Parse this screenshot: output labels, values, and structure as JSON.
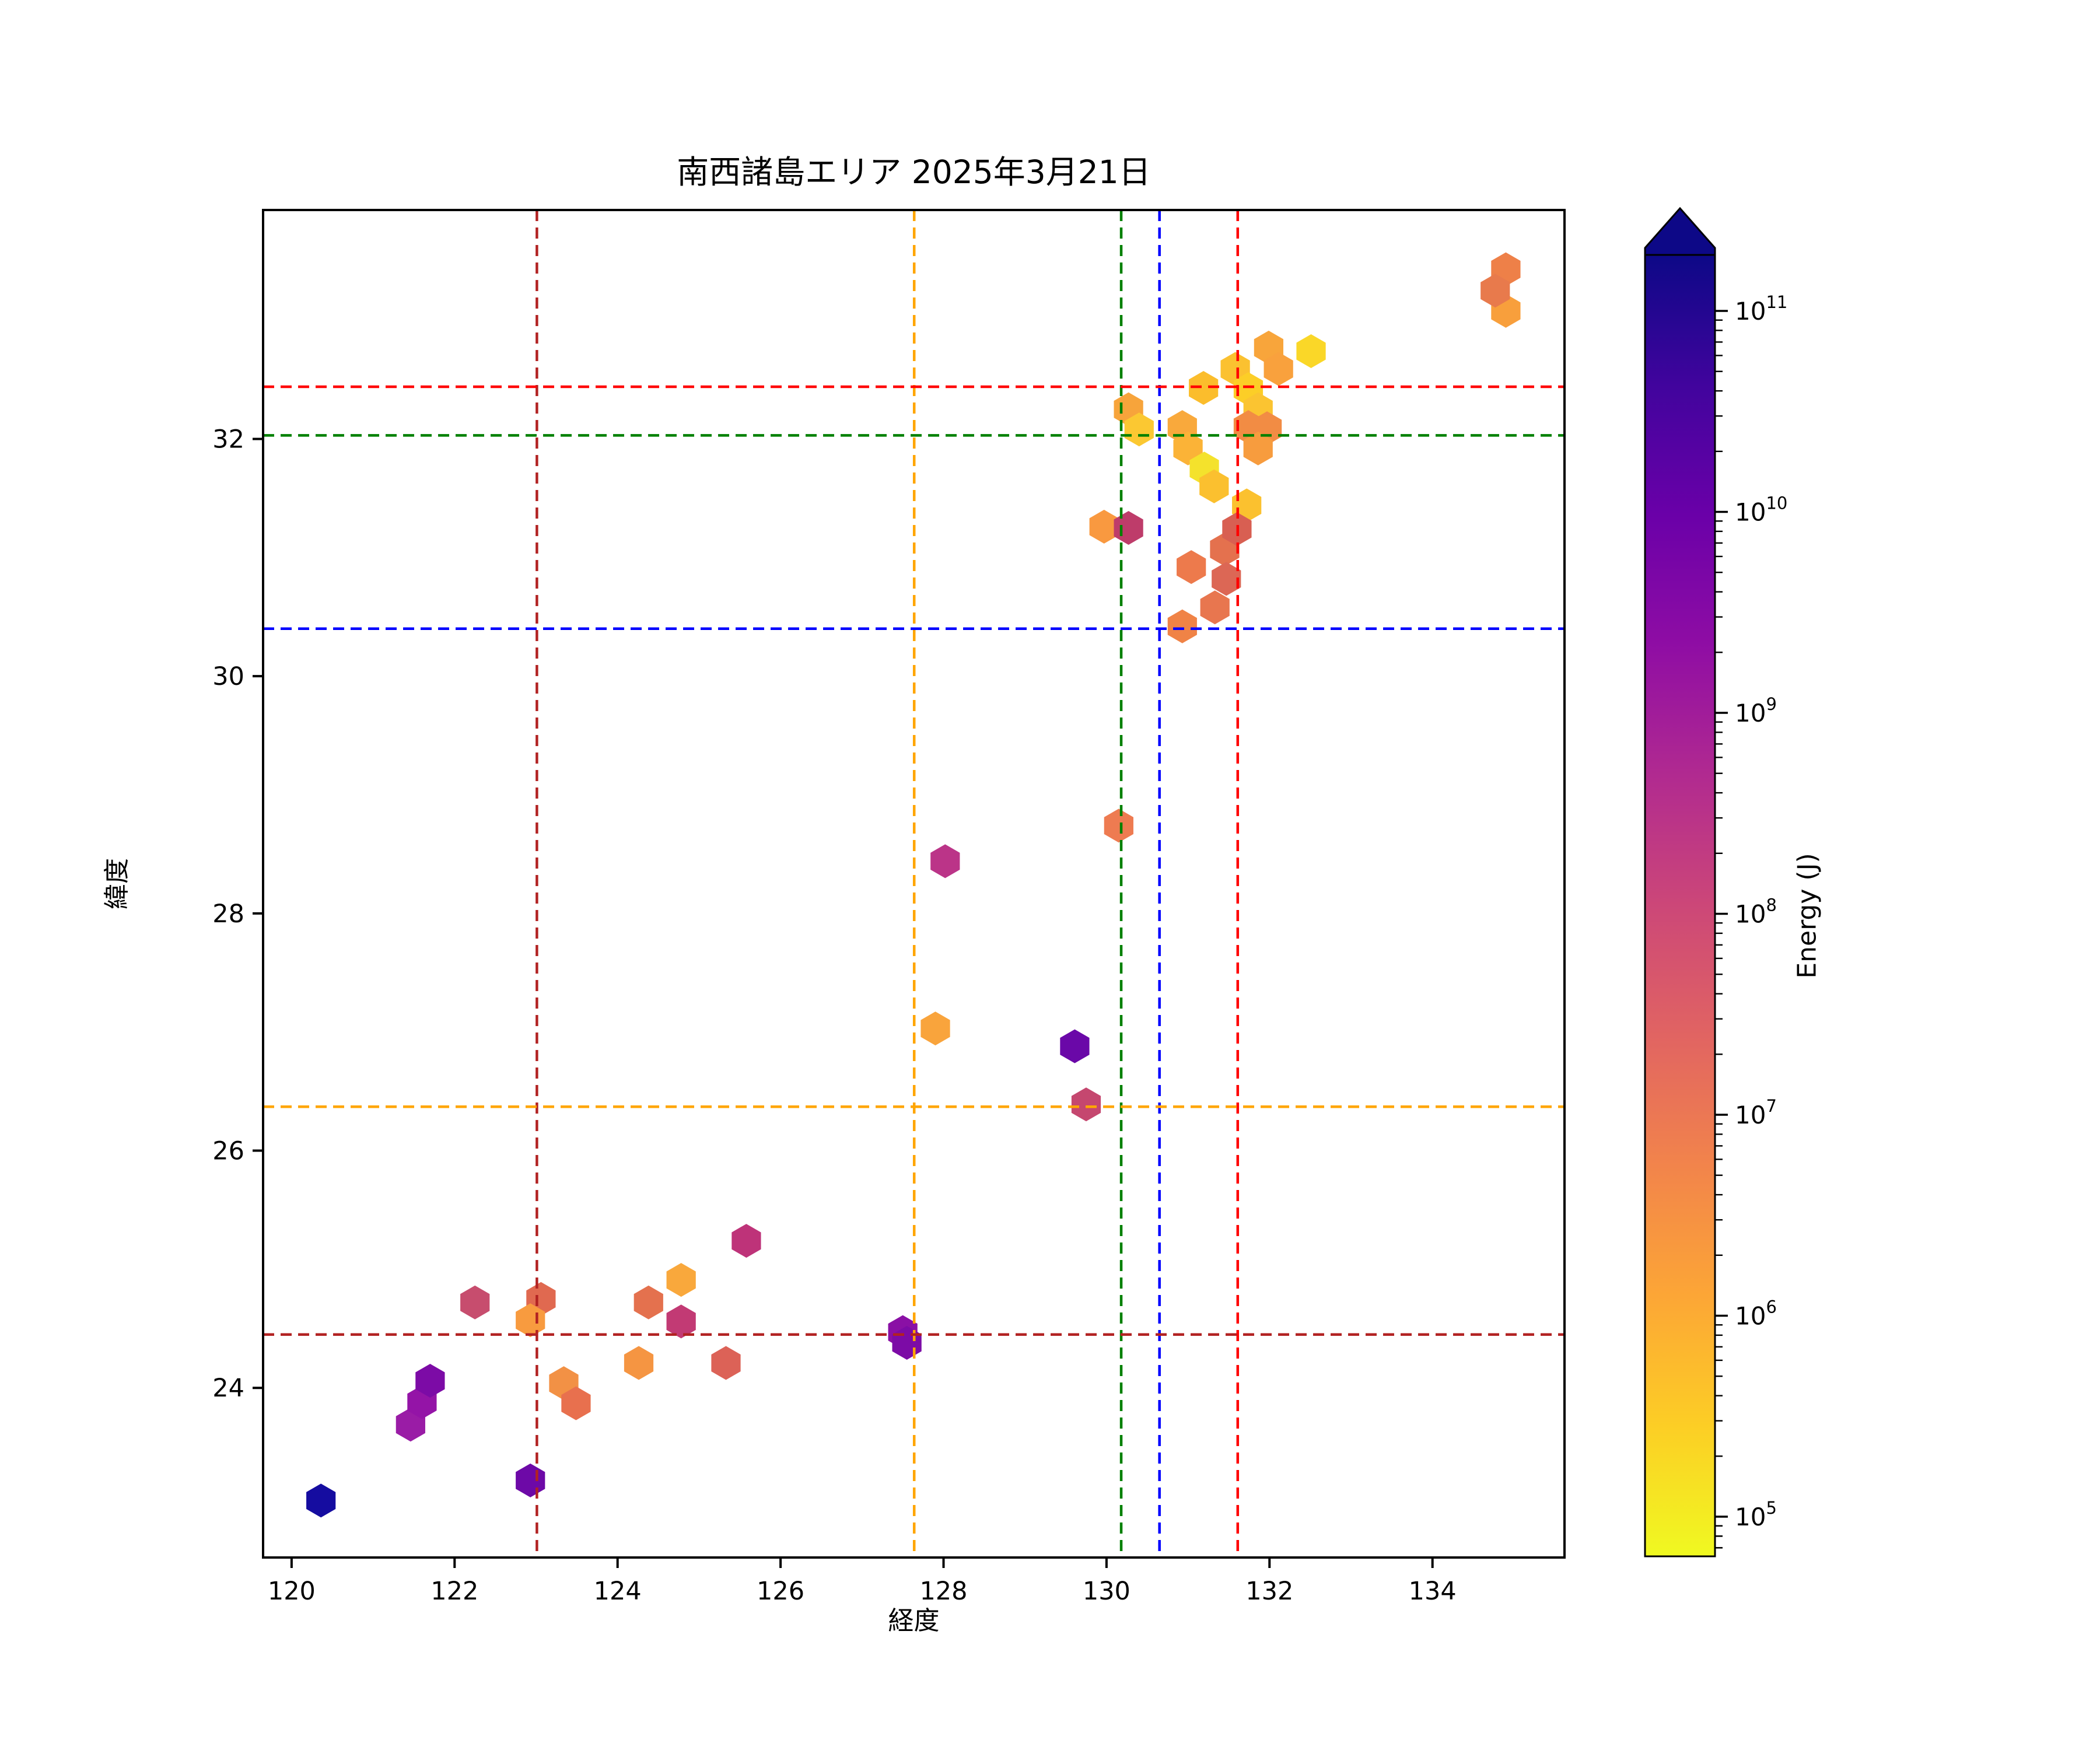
{
  "title": "南西諸島エリア 2025年3月21日",
  "axes": {
    "xlabel": "経度",
    "ylabel": "緯度",
    "xticks": [
      120,
      122,
      124,
      126,
      128,
      130,
      132,
      134
    ],
    "yticks": [
      24,
      26,
      28,
      30,
      32
    ],
    "xlim": [
      119.65,
      135.62
    ],
    "ylim": [
      22.57,
      33.93
    ]
  },
  "colorbar": {
    "label": "Energy (J)",
    "scale": "log",
    "extend": "max",
    "colormap": "plasma_r",
    "tick_exponents": [
      11,
      10,
      9,
      8,
      7,
      6,
      5
    ],
    "tick_values": [
      100000000000.0,
      10000000000.0,
      1000000000.0,
      100000000.0,
      10000000.0,
      1000000.0,
      100000.0
    ],
    "gradient_top_to_bottom": [
      "#0D0887",
      "#41049D",
      "#6A00A8",
      "#8F0DA4",
      "#B12A90",
      "#CC4778",
      "#E16462",
      "#F2844B",
      "#FCA636",
      "#FCCE25",
      "#F0F921"
    ],
    "arrow_color": "#0D0887"
  },
  "chart_data": {
    "type": "scatter",
    "marker": "hexagon",
    "title": "南西諸島エリア 2025年3月21日",
    "xlabel": "経度",
    "ylabel": "緯度",
    "xlim": [
      119.65,
      135.62
    ],
    "ylim": [
      22.57,
      33.93
    ],
    "grid": false,
    "color_scale_label": "Energy (J)",
    "reference_lines": [
      {
        "orientation": "vertical",
        "value": 123.01,
        "color": "#B22222",
        "style": "dashed"
      },
      {
        "orientation": "vertical",
        "value": 127.64,
        "color": "#FFA500",
        "style": "dashed"
      },
      {
        "orientation": "vertical",
        "value": 130.18,
        "color": "#008000",
        "style": "dashed"
      },
      {
        "orientation": "vertical",
        "value": 130.65,
        "color": "#0000FF",
        "style": "dashed"
      },
      {
        "orientation": "vertical",
        "value": 131.61,
        "color": "#FF0000",
        "style": "dashed"
      },
      {
        "orientation": "horizontal",
        "value": 24.45,
        "color": "#B22222",
        "style": "dashed"
      },
      {
        "orientation": "horizontal",
        "value": 26.37,
        "color": "#FFA500",
        "style": "dashed"
      },
      {
        "orientation": "horizontal",
        "value": 30.4,
        "color": "#0000FF",
        "style": "dashed"
      },
      {
        "orientation": "horizontal",
        "value": 32.03,
        "color": "#008000",
        "style": "dashed"
      },
      {
        "orientation": "horizontal",
        "value": 32.44,
        "color": "#FF0000",
        "style": "dashed"
      }
    ],
    "points": [
      {
        "lon": 120.36,
        "lat": 23.05,
        "energy_j": 150000000000.0,
        "color": "#150CA0"
      },
      {
        "lon": 121.46,
        "lat": 23.69,
        "energy_j": 5000000000.0,
        "color": "#9A1CA6"
      },
      {
        "lon": 121.6,
        "lat": 23.88,
        "energy_j": 6000000000.0,
        "color": "#9414A7"
      },
      {
        "lon": 121.7,
        "lat": 24.06,
        "energy_j": 10000000000.0,
        "color": "#7C0BA6"
      },
      {
        "lon": 122.25,
        "lat": 24.72,
        "energy_j": 300000000.0,
        "color": "#C74D6E"
      },
      {
        "lon": 123.06,
        "lat": 24.75,
        "energy_j": 80000000.0,
        "color": "#E06950"
      },
      {
        "lon": 122.93,
        "lat": 24.57,
        "energy_j": 3000000.0,
        "color": "#F89B3F"
      },
      {
        "lon": 122.93,
        "lat": 23.22,
        "energy_j": 20000000000.0,
        "color": "#6D09A7"
      },
      {
        "lon": 123.34,
        "lat": 24.04,
        "energy_j": 5000000.0,
        "color": "#F29145"
      },
      {
        "lon": 123.49,
        "lat": 23.87,
        "energy_j": 45000000.0,
        "color": "#E8704E"
      },
      {
        "lon": 124.26,
        "lat": 24.21,
        "energy_j": 4000000.0,
        "color": "#F59542"
      },
      {
        "lon": 124.38,
        "lat": 24.72,
        "energy_j": 50000000.0,
        "color": "#E4714E"
      },
      {
        "lon": 124.78,
        "lat": 24.56,
        "energy_j": 600000000.0,
        "color": "#C23A74"
      },
      {
        "lon": 124.78,
        "lat": 24.91,
        "energy_j": 1800000.0,
        "color": "#F9A83C"
      },
      {
        "lon": 125.33,
        "lat": 24.21,
        "energy_j": 120000000.0,
        "color": "#DC6257"
      },
      {
        "lon": 125.58,
        "lat": 25.24,
        "energy_j": 900000000.0,
        "color": "#BE3379"
      },
      {
        "lon": 127.5,
        "lat": 24.47,
        "energy_j": 8000000000.0,
        "color": "#8A10A5"
      },
      {
        "lon": 127.55,
        "lat": 24.38,
        "energy_j": 10000000000.0,
        "color": "#7C0BA6"
      },
      {
        "lon": 128.02,
        "lat": 28.44,
        "energy_j": 1000000000.0,
        "color": "#BB3488"
      },
      {
        "lon": 127.9,
        "lat": 27.03,
        "energy_j": 2000000.0,
        "color": "#F9A43C"
      },
      {
        "lon": 129.61,
        "lat": 26.88,
        "energy_j": 25000000000.0,
        "color": "#6A08A8"
      },
      {
        "lon": 129.75,
        "lat": 26.39,
        "energy_j": 400000000.0,
        "color": "#C5476F"
      },
      {
        "lon": 130.15,
        "lat": 28.74,
        "energy_j": 14000000.0,
        "color": "#EE7B51"
      },
      {
        "lon": 129.97,
        "lat": 31.26,
        "energy_j": 3000000.0,
        "color": "#F99940"
      },
      {
        "lon": 130.27,
        "lat": 31.25,
        "energy_j": 500000000.0,
        "color": "#BE3C6A"
      },
      {
        "lon": 130.27,
        "lat": 32.25,
        "energy_j": 2000000.0,
        "color": "#F7A43B"
      },
      {
        "lon": 130.4,
        "lat": 32.08,
        "energy_j": 600000.0,
        "color": "#FBC832"
      },
      {
        "lon": 130.93,
        "lat": 32.1,
        "energy_j": 1800000.0,
        "color": "#F9A93C"
      },
      {
        "lon": 131.0,
        "lat": 31.92,
        "energy_j": 1400000.0,
        "color": "#FBB337"
      },
      {
        "lon": 131.19,
        "lat": 32.43,
        "energy_j": 1000000.0,
        "color": "#FBBD2C"
      },
      {
        "lon": 131.2,
        "lat": 31.75,
        "energy_j": 120000.0,
        "color": "#F4E22C"
      },
      {
        "lon": 131.32,
        "lat": 31.6,
        "energy_j": 900000.0,
        "color": "#FBC02F"
      },
      {
        "lon": 131.58,
        "lat": 32.59,
        "energy_j": 800000.0,
        "color": "#FBC130"
      },
      {
        "lon": 131.74,
        "lat": 32.42,
        "energy_j": 400000.0,
        "color": "#FCCE27"
      },
      {
        "lon": 131.86,
        "lat": 32.25,
        "energy_j": 700000.0,
        "color": "#FBC431"
      },
      {
        "lon": 131.99,
        "lat": 32.77,
        "energy_j": 2200000.0,
        "color": "#F8A53B"
      },
      {
        "lon": 132.11,
        "lat": 32.59,
        "energy_j": 2500000.0,
        "color": "#F9A13D"
      },
      {
        "lon": 132.51,
        "lat": 32.74,
        "energy_j": 300000.0,
        "color": "#FAD728"
      },
      {
        "lon": 131.74,
        "lat": 32.1,
        "energy_j": 6000000.0,
        "color": "#F28C44"
      },
      {
        "lon": 131.97,
        "lat": 32.09,
        "energy_j": 6000000.0,
        "color": "#F28C44"
      },
      {
        "lon": 131.86,
        "lat": 31.92,
        "energy_j": 3000000.0,
        "color": "#F79C3E"
      },
      {
        "lon": 131.72,
        "lat": 31.44,
        "energy_j": 800000.0,
        "color": "#FBC12F"
      },
      {
        "lon": 131.45,
        "lat": 31.07,
        "energy_j": 50000000.0,
        "color": "#E4714E"
      },
      {
        "lon": 131.6,
        "lat": 31.24,
        "energy_j": 130000000.0,
        "color": "#D85F52"
      },
      {
        "lon": 131.04,
        "lat": 30.92,
        "energy_j": 16000000.0,
        "color": "#ED7A4C"
      },
      {
        "lon": 131.47,
        "lat": 30.82,
        "energy_j": 90000000.0,
        "color": "#DC6755"
      },
      {
        "lon": 131.33,
        "lat": 30.58,
        "energy_j": 25000000.0,
        "color": "#E8764F"
      },
      {
        "lon": 130.93,
        "lat": 30.42,
        "energy_j": 8000000.0,
        "color": "#F08346"
      },
      {
        "lon": 134.9,
        "lat": 33.43,
        "energy_j": 12000000.0,
        "color": "#EE8048"
      },
      {
        "lon": 134.9,
        "lat": 33.08,
        "energy_j": 2500000.0,
        "color": "#F89F3C"
      },
      {
        "lon": 134.77,
        "lat": 33.25,
        "energy_j": 15000000.0,
        "color": "#E87A4C"
      }
    ]
  }
}
